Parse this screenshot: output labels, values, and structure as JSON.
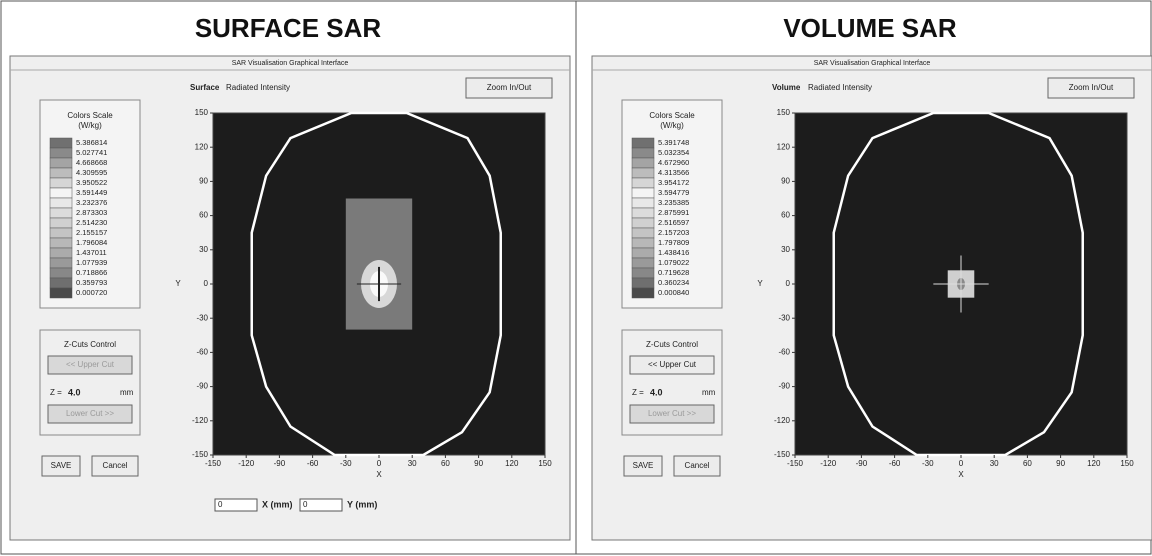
{
  "panels": [
    {
      "heading": "SURFACE SAR",
      "window_title": "SAR Visualisation Graphical Interface",
      "mode": "Surface",
      "mode_label": "Radiated Intensity",
      "zoom_button": "Zoom In/Out",
      "scale_title": "Colors Scale",
      "scale_unit": "(W/kg)",
      "scale_values": [
        "5.386814",
        "5.027741",
        "4.668668",
        "4.309595",
        "3.950522",
        "3.591449",
        "3.232376",
        "2.873303",
        "2.514230",
        "2.155157",
        "1.796084",
        "1.437011",
        "1.077939",
        "0.718866",
        "0.359793",
        "0.000720"
      ],
      "zcuts": {
        "title": "Z-Cuts Control",
        "upper": "<< Upper Cut",
        "z_label": "Z =",
        "z_value": "4.0",
        "z_unit": "mm",
        "lower": "Lower Cut >>",
        "upper_enabled": false
      },
      "save": "SAVE",
      "cancel": "Cancel",
      "xticks": [
        -150,
        -120,
        -90,
        -60,
        -30,
        0,
        30,
        60,
        90,
        120,
        150
      ],
      "yticks": [
        150,
        120,
        90,
        60,
        30,
        0,
        -30,
        -60,
        -90,
        -120,
        -150
      ],
      "x_label": "X",
      "y_label": "Y",
      "coords": {
        "x_value": "0",
        "x_label": "X (mm)",
        "y_value": "0",
        "y_label": "Y (mm)"
      }
    },
    {
      "heading": "VOLUME SAR",
      "window_title": "SAR Visualisation Graphical Interface",
      "mode": "Volume",
      "mode_label": "Radiated Intensity",
      "zoom_button": "Zoom In/Out",
      "scale_title": "Colors Scale",
      "scale_unit": "(W/kg)",
      "scale_values": [
        "5.391748",
        "5.032354",
        "4.672960",
        "4.313566",
        "3.954172",
        "3.594779",
        "3.235385",
        "2.875991",
        "2.516597",
        "2.157203",
        "1.797809",
        "1.438416",
        "1.079022",
        "0.719628",
        "0.360234",
        "0.000840"
      ],
      "zcuts": {
        "title": "Z-Cuts Control",
        "upper": "<< Upper Cut",
        "z_label": "Z =",
        "z_value": "4.0",
        "z_unit": "mm",
        "lower": "Lower Cut >>",
        "upper_enabled": true
      },
      "save": "SAVE",
      "cancel": "Cancel",
      "xticks": [
        -150,
        -120,
        -90,
        -60,
        -30,
        0,
        30,
        60,
        90,
        120,
        150
      ],
      "yticks": [
        150,
        120,
        90,
        60,
        30,
        0,
        -30,
        -60,
        -90,
        -120,
        -150
      ],
      "x_label": "X",
      "y_label": "Y"
    }
  ]
}
